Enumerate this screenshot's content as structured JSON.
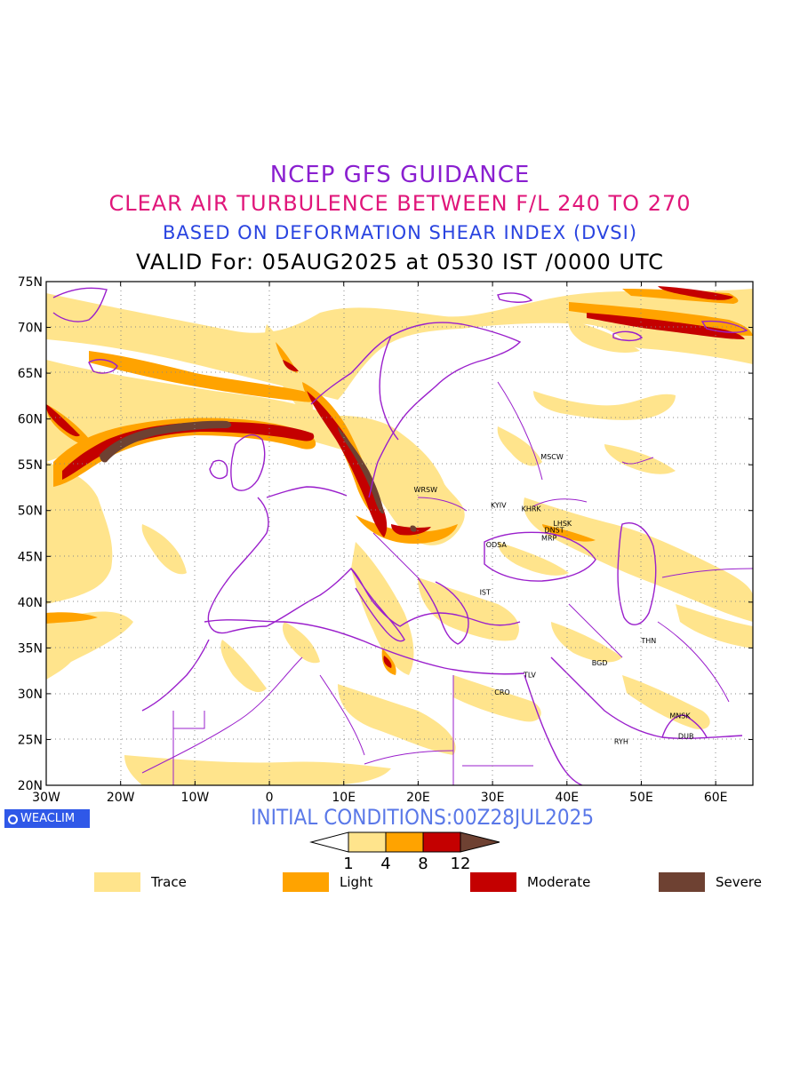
{
  "header": {
    "line1": "NCEP GFS GUIDANCE",
    "line2": "CLEAR AIR TURBULENCE BETWEEN F/L 240 TO 270",
    "line3": "BASED ON DEFORMATION SHEAR INDEX (DVSI)",
    "line4": "VALID For: 05AUG2025 at 0530 IST /0000 UTC"
  },
  "map": {
    "lat_labels": [
      "75N",
      "70N",
      "65N",
      "60N",
      "55N",
      "50N",
      "45N",
      "40N",
      "35N",
      "30N",
      "25N",
      "20N"
    ],
    "lon_labels": [
      "30W",
      "20W",
      "10W",
      "0",
      "10E",
      "20E",
      "30E",
      "40E",
      "50E",
      "60E"
    ],
    "cities": [
      {
        "name": "MSCW",
        "lon": 38.0,
        "lat": 55.9
      },
      {
        "name": "WRSW",
        "lon": 21.0,
        "lat": 52.3
      },
      {
        "name": "KYIV",
        "lon": 30.8,
        "lat": 50.6
      },
      {
        "name": "KHRK",
        "lon": 35.2,
        "lat": 50.2
      },
      {
        "name": "LHSK",
        "lon": 39.4,
        "lat": 48.6
      },
      {
        "name": "DNST",
        "lon": 38.3,
        "lat": 47.9
      },
      {
        "name": "MRP",
        "lon": 37.6,
        "lat": 47.0
      },
      {
        "name": "ODSA",
        "lon": 30.5,
        "lat": 46.3
      },
      {
        "name": "IST",
        "lon": 29.0,
        "lat": 41.1
      },
      {
        "name": "THN",
        "lon": 51.0,
        "lat": 35.8
      },
      {
        "name": "BGD",
        "lon": 44.4,
        "lat": 33.4
      },
      {
        "name": "TLV",
        "lon": 35.0,
        "lat": 32.1
      },
      {
        "name": "CRO",
        "lon": 31.3,
        "lat": 30.2
      },
      {
        "name": "MNSK",
        "lon": 55.2,
        "lat": 27.6
      },
      {
        "name": "DUB",
        "lon": 56.0,
        "lat": 25.4
      },
      {
        "name": "RYH",
        "lon": 47.3,
        "lat": 24.8
      }
    ]
  },
  "badge": "WEACLIM",
  "initial": "INITIAL CONDITIONS:00Z28JUL2025",
  "colorbar": {
    "ticks": [
      "1",
      "4",
      "8",
      "12"
    ],
    "colors": [
      "#ffe48c",
      "#ffa300",
      "#c40000",
      "#6e4132"
    ]
  },
  "legend": [
    {
      "label": "Trace",
      "color": "#ffe48c"
    },
    {
      "label": "Light",
      "color": "#ffa300"
    },
    {
      "label": "Moderate",
      "color": "#c40000"
    },
    {
      "label": "Severe",
      "color": "#6e4132"
    }
  ]
}
